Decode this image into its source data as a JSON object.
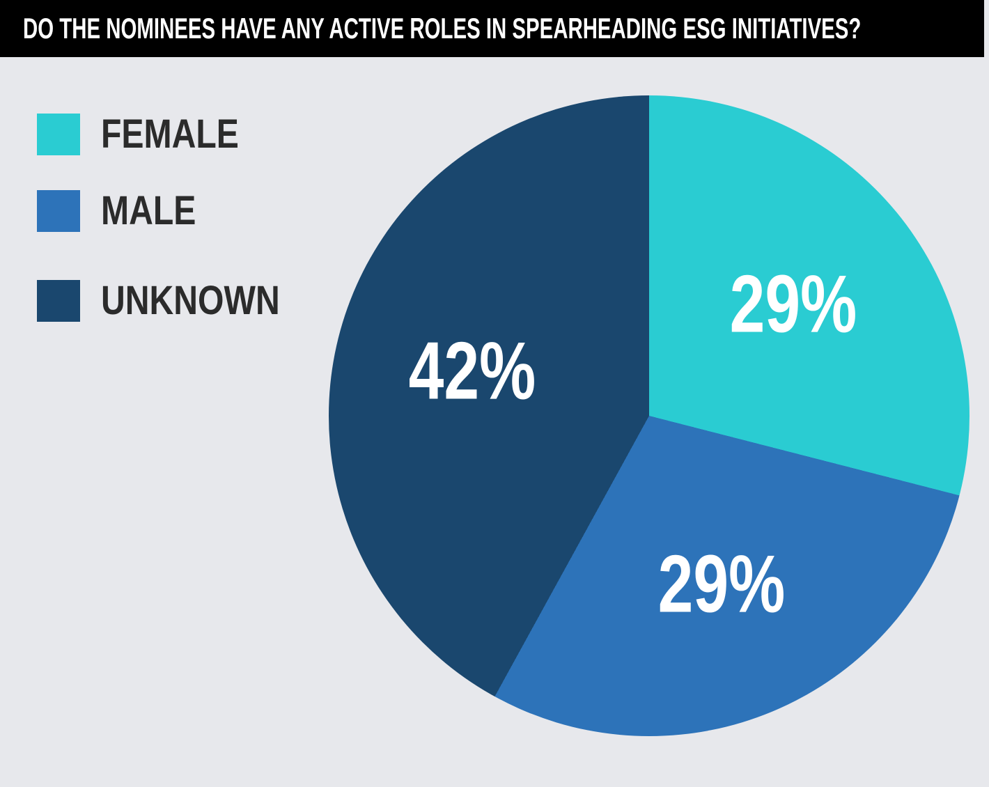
{
  "header": {
    "title": "DO THE NOMINEES HAVE ANY ACTIVE ROLES IN SPEARHEADING ESG INITIATIVES?",
    "bg_color": "#000000",
    "text_color": "#ffffff"
  },
  "legend": {
    "position": "top-left",
    "items": [
      {
        "label": "FEMALE",
        "color": "#2accd2"
      },
      {
        "label": "MALE",
        "color": "#2d73b9"
      },
      {
        "label": "UNKNOWN",
        "color": "#1a476e"
      }
    ]
  },
  "chart_data": {
    "type": "pie",
    "title": "DO THE NOMINEES HAVE ANY ACTIVE ROLES IN SPEARHEADING ESG INITIATIVES?",
    "start_angle_deg": 0,
    "direction": "clockwise",
    "legend_position": "top-left",
    "value_labels": "inside-white-percent",
    "slices": [
      {
        "label": "FEMALE",
        "value": 29,
        "display": "29%",
        "color": "#2accd2"
      },
      {
        "label": "MALE",
        "value": 29,
        "display": "29%",
        "color": "#2d73b9"
      },
      {
        "label": "UNKNOWN",
        "value": 42,
        "display": "42%",
        "color": "#1a476e"
      }
    ]
  },
  "colors": {
    "page_background": "#e7e8ec",
    "header_background": "#000000",
    "legend_text": "#2b2b2b",
    "slice_label_text": "#ffffff"
  }
}
